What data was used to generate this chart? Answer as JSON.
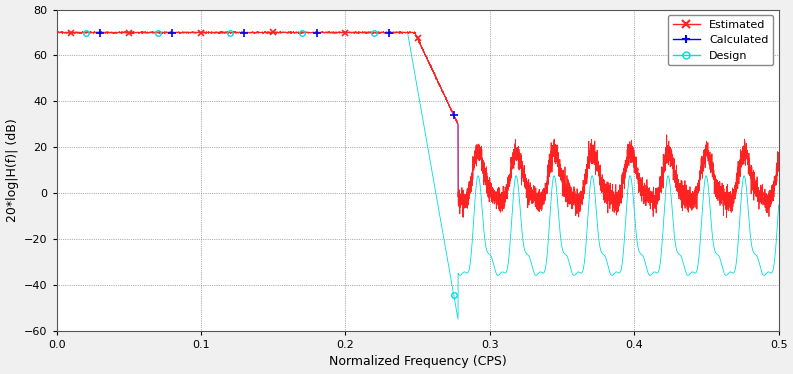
{
  "title": "",
  "xlabel": "Normalized Frequency (CPS)",
  "ylabel": "20*log|H(f)| (dB)",
  "xlim": [
    0,
    0.5
  ],
  "ylim": [
    -60,
    80
  ],
  "yticks": [
    -60,
    -40,
    -20,
    0,
    20,
    40,
    60,
    80
  ],
  "xticks": [
    0,
    0.1,
    0.2,
    0.3,
    0.4,
    0.5
  ],
  "bg_color": "#ffffff",
  "fig_color": "#f0f0f0",
  "estimated_color": "#ff2222",
  "calculated_color": "#0000ff",
  "design_color": "#00dddd",
  "legend_labels": [
    "Estimated",
    "Calculated",
    "Design"
  ],
  "cutoff": 0.253,
  "passband_db": 70.0,
  "figsize": [
    7.93,
    3.74
  ],
  "dpi": 100,
  "marker_x_freqs": [
    0.01,
    0.05,
    0.1,
    0.15,
    0.2,
    0.25
  ],
  "marker_plus_freqs": [
    0.03,
    0.08,
    0.13,
    0.18,
    0.23,
    0.275
  ],
  "marker_o_freqs": [
    0.06,
    0.11,
    0.16,
    0.21,
    0.275
  ]
}
